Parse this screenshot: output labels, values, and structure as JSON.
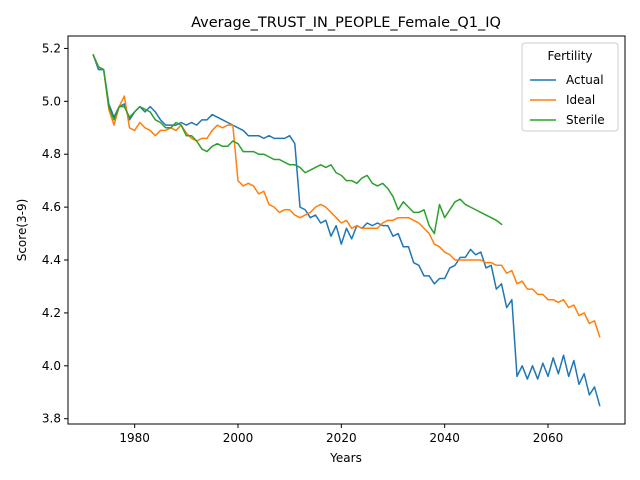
{
  "chart_data": {
    "type": "line",
    "title": "Average_TRUST_IN_PEOPLE_Female_Q1_IQ",
    "xlabel": "Years",
    "ylabel": "Score(3-9)",
    "xlim": [
      1967.1,
      2074.9
    ],
    "ylim": [
      3.78,
      5.247
    ],
    "xticks": [
      1980,
      2000,
      2020,
      2040,
      2060
    ],
    "yticks": [
      3.8,
      4.0,
      4.2,
      4.4,
      4.6,
      4.8,
      5.0,
      5.2
    ],
    "grid": false,
    "legend": {
      "title": "Fertility",
      "position": "top-right"
    },
    "series": [
      {
        "name": "Actual",
        "color": "#1f77b4",
        "x": [
          1972,
          1973,
          1974,
          1975,
          1976,
          1977,
          1978,
          1979,
          1980,
          1981,
          1982,
          1983,
          1984,
          1985,
          1986,
          1987,
          1988,
          1989,
          1990,
          1991,
          1992,
          1993,
          1994,
          1995,
          1996,
          1997,
          1998,
          1999,
          2000,
          2001,
          2002,
          2003,
          2004,
          2005,
          2006,
          2007,
          2008,
          2009,
          2010,
          2011,
          2012,
          2013,
          2014,
          2015,
          2016,
          2017,
          2018,
          2019,
          2020,
          2021,
          2022,
          2023,
          2024,
          2025,
          2026,
          2027,
          2028,
          2029,
          2030,
          2031,
          2032,
          2033,
          2034,
          2035,
          2036,
          2037,
          2038,
          2039,
          2040,
          2041,
          2042,
          2043,
          2044,
          2045,
          2046,
          2047,
          2048,
          2049,
          2050,
          2051,
          2052,
          2053,
          2054,
          2055,
          2056,
          2057,
          2058,
          2059,
          2060,
          2061,
          2062,
          2063,
          2064,
          2065,
          2066,
          2067,
          2068,
          2069,
          2070
        ],
        "values": [
          5.175,
          5.12,
          5.12,
          4.99,
          4.94,
          4.98,
          4.99,
          4.93,
          4.96,
          4.98,
          4.96,
          4.98,
          4.96,
          4.93,
          4.91,
          4.91,
          4.91,
          4.92,
          4.91,
          4.92,
          4.91,
          4.93,
          4.93,
          4.95,
          4.94,
          4.93,
          4.92,
          4.91,
          4.9,
          4.89,
          4.87,
          4.87,
          4.87,
          4.86,
          4.87,
          4.86,
          4.86,
          4.86,
          4.87,
          4.84,
          4.6,
          4.59,
          4.56,
          4.57,
          4.54,
          4.55,
          4.49,
          4.53,
          4.46,
          4.52,
          4.48,
          4.53,
          4.52,
          4.54,
          4.53,
          4.54,
          4.53,
          4.53,
          4.49,
          4.5,
          4.45,
          4.45,
          4.39,
          4.38,
          4.34,
          4.34,
          4.31,
          4.33,
          4.33,
          4.37,
          4.38,
          4.41,
          4.41,
          4.44,
          4.42,
          4.43,
          4.37,
          4.38,
          4.29,
          4.31,
          4.22,
          4.25,
          3.96,
          4.0,
          3.95,
          4.0,
          3.95,
          4.01,
          3.96,
          4.03,
          3.97,
          4.04,
          3.96,
          4.02,
          3.93,
          3.97,
          3.89,
          3.92,
          3.85
        ]
      },
      {
        "name": "Ideal",
        "color": "#ff7f0e",
        "x": [
          1972,
          1973,
          1974,
          1975,
          1976,
          1977,
          1978,
          1979,
          1980,
          1981,
          1982,
          1983,
          1984,
          1985,
          1986,
          1987,
          1988,
          1989,
          1990,
          1991,
          1992,
          1993,
          1994,
          1995,
          1996,
          1997,
          1998,
          1999,
          2000,
          2001,
          2002,
          2003,
          2004,
          2005,
          2006,
          2007,
          2008,
          2009,
          2010,
          2011,
          2012,
          2013,
          2014,
          2015,
          2016,
          2017,
          2018,
          2019,
          2020,
          2021,
          2022,
          2023,
          2024,
          2025,
          2026,
          2027,
          2028,
          2029,
          2030,
          2031,
          2032,
          2033,
          2034,
          2035,
          2036,
          2037,
          2038,
          2039,
          2040,
          2041,
          2042,
          2043,
          2044,
          2045,
          2046,
          2047,
          2048,
          2049,
          2050,
          2051,
          2052,
          2053,
          2054,
          2055,
          2056,
          2057,
          2058,
          2059,
          2060,
          2061,
          2062,
          2063,
          2064,
          2065,
          2066,
          2067,
          2068,
          2069,
          2070
        ],
        "values": [
          5.175,
          5.13,
          5.12,
          4.97,
          4.91,
          4.98,
          5.02,
          4.9,
          4.89,
          4.92,
          4.9,
          4.89,
          4.87,
          4.89,
          4.89,
          4.9,
          4.89,
          4.91,
          4.88,
          4.86,
          4.85,
          4.86,
          4.86,
          4.89,
          4.91,
          4.9,
          4.91,
          4.91,
          4.7,
          4.68,
          4.69,
          4.68,
          4.65,
          4.66,
          4.61,
          4.6,
          4.58,
          4.59,
          4.59,
          4.57,
          4.56,
          4.57,
          4.58,
          4.6,
          4.61,
          4.6,
          4.58,
          4.56,
          4.54,
          4.55,
          4.52,
          4.53,
          4.52,
          4.52,
          4.52,
          4.52,
          4.54,
          4.55,
          4.55,
          4.56,
          4.56,
          4.56,
          4.55,
          4.54,
          4.52,
          4.5,
          4.46,
          4.45,
          4.43,
          4.42,
          4.4,
          4.4,
          4.4,
          4.4,
          4.4,
          4.4,
          4.39,
          4.39,
          4.38,
          4.38,
          4.35,
          4.36,
          4.31,
          4.32,
          4.29,
          4.29,
          4.27,
          4.27,
          4.25,
          4.25,
          4.24,
          4.25,
          4.22,
          4.23,
          4.19,
          4.2,
          4.16,
          4.17,
          4.11
        ]
      },
      {
        "name": "Sterile",
        "color": "#2ca02c",
        "x": [
          1972,
          1973,
          1974,
          1975,
          1976,
          1977,
          1978,
          1979,
          1980,
          1981,
          1982,
          1983,
          1984,
          1985,
          1986,
          1987,
          1988,
          1989,
          1990,
          1991,
          1992,
          1993,
          1994,
          1995,
          1996,
          1997,
          1998,
          1999,
          2000,
          2001,
          2002,
          2003,
          2004,
          2005,
          2006,
          2007,
          2008,
          2009,
          2010,
          2011,
          2012,
          2013,
          2014,
          2015,
          2016,
          2017,
          2018,
          2019,
          2020,
          2021,
          2022,
          2023,
          2024,
          2025,
          2026,
          2027,
          2028,
          2029,
          2030,
          2031,
          2032,
          2033,
          2034,
          2035,
          2036,
          2037,
          2038,
          2039,
          2040,
          2041,
          2042,
          2043,
          2044,
          2045,
          2046,
          2047,
          2048,
          2049,
          2050,
          2051
        ],
        "values": [
          5.175,
          5.13,
          5.12,
          4.98,
          4.93,
          4.98,
          4.98,
          4.94,
          4.96,
          4.98,
          4.97,
          4.96,
          4.93,
          4.92,
          4.9,
          4.9,
          4.92,
          4.91,
          4.87,
          4.87,
          4.85,
          4.82,
          4.81,
          4.83,
          4.84,
          4.83,
          4.83,
          4.85,
          4.84,
          4.81,
          4.81,
          4.81,
          4.8,
          4.8,
          4.79,
          4.78,
          4.78,
          4.77,
          4.76,
          4.76,
          4.75,
          4.73,
          4.74,
          4.75,
          4.76,
          4.75,
          4.76,
          4.73,
          4.72,
          4.7,
          4.7,
          4.69,
          4.71,
          4.72,
          4.69,
          4.68,
          4.69,
          4.67,
          4.64,
          4.59,
          4.62,
          4.6,
          4.58,
          4.58,
          4.59,
          4.53,
          4.5,
          4.61,
          4.56,
          4.59,
          4.62,
          4.63,
          4.61,
          4.6,
          4.59,
          4.58,
          4.57,
          4.56,
          4.55,
          4.535
        ]
      }
    ]
  }
}
